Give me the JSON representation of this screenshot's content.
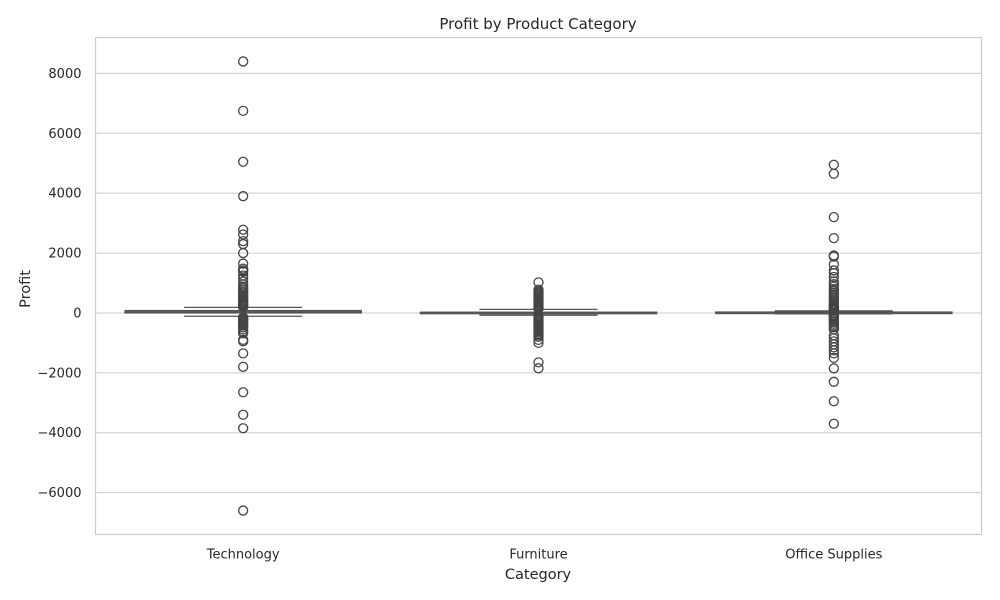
{
  "chart_data": {
    "type": "box",
    "title": "Profit by Product Category",
    "xlabel": "Category",
    "ylabel": "Profit",
    "ylim": [
      -7400,
      9200
    ],
    "yticks": [
      -6000,
      -4000,
      -2000,
      0,
      2000,
      4000,
      6000,
      8000
    ],
    "grid": true,
    "categories": [
      "Technology",
      "Furniture",
      "Office Supplies"
    ],
    "colors": {
      "box_fill": "#4878ae",
      "edge": "#555555",
      "grid": "#cccccc",
      "text": "#262626"
    },
    "boxes": [
      {
        "category": "Technology",
        "q1": 0,
        "median": 30,
        "q3": 80,
        "whisker_low": -110,
        "whisker_high": 185,
        "outliers": [
          8400,
          6750,
          5050,
          3900,
          2780,
          2620,
          2400,
          2300,
          2000,
          1650,
          1480,
          1420,
          1380,
          1250,
          1150,
          1050,
          950,
          880,
          820,
          760,
          700,
          650,
          600,
          550,
          500,
          450,
          420,
          380,
          340,
          300,
          260,
          230,
          200,
          -150,
          -180,
          -220,
          -260,
          -300,
          -340,
          -380,
          -420,
          -480,
          -550,
          -620,
          -680,
          -900,
          -950,
          -1350,
          -1800,
          -2650,
          -3400,
          -3850,
          -6600
        ]
      },
      {
        "category": "Furniture",
        "q1": -12,
        "median": 5,
        "q3": 25,
        "whisker_low": -75,
        "whisker_high": 120,
        "outliers": [
          1020,
          780,
          720,
          680,
          640,
          600,
          560,
          520,
          480,
          440,
          400,
          360,
          320,
          280,
          240,
          200,
          160,
          140,
          -110,
          -140,
          -170,
          -200,
          -240,
          -280,
          -320,
          -360,
          -400,
          -440,
          -480,
          -520,
          -560,
          -600,
          -650,
          -700,
          -750,
          -800,
          -900,
          -1000,
          -1650,
          -1850
        ]
      },
      {
        "category": "Office Supplies",
        "q1": 2,
        "median": 8,
        "q3": 30,
        "whisker_low": -30,
        "whisker_high": 70,
        "outliers": [
          4950,
          4650,
          3200,
          2500,
          1920,
          1880,
          1620,
          1420,
          1330,
          1200,
          1050,
          960,
          880,
          800,
          740,
          680,
          620,
          560,
          500,
          450,
          400,
          350,
          300,
          260,
          220,
          180,
          150,
          120,
          100,
          -60,
          -90,
          -120,
          -160,
          -200,
          -250,
          -300,
          -360,
          -420,
          -480,
          -550,
          -750,
          -850,
          -950,
          -1050,
          -1150,
          -1250,
          -1350,
          -1500,
          -1850,
          -2300,
          -2950,
          -3700
        ]
      }
    ]
  }
}
